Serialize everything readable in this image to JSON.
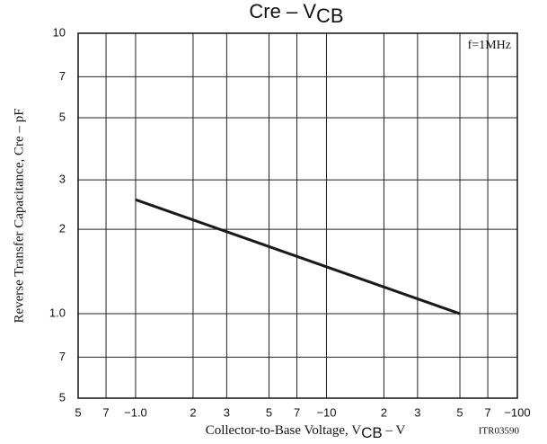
{
  "chart_data": {
    "type": "line",
    "title": [
      "Cre  –  V",
      "CB"
    ],
    "xlabel": [
      "Collector-to-Base Voltage, V",
      "CB",
      "  –  V"
    ],
    "ylabel": "Reverse Transfer Capacitance, Cre  –  pF",
    "annotations": [
      "f=1MHz",
      "ITR03590"
    ],
    "x": [
      1,
      50
    ],
    "series": [
      {
        "values": [
          2.55,
          1.0
        ],
        "color": "#1a1a1a"
      }
    ],
    "xlog": true,
    "ylog": true,
    "grid": true,
    "xlim": [
      0.5,
      100
    ],
    "ylim": [
      0.5,
      10
    ],
    "xticks": [
      {
        "value": 0.5,
        "label": "5"
      },
      {
        "value": 0.7,
        "label": "7"
      },
      {
        "value": 1,
        "label": "−1.0"
      },
      2,
      3,
      5,
      7,
      {
        "value": 10,
        "label": "−10"
      },
      {
        "value": 20,
        "label": "2"
      },
      {
        "value": 30,
        "label": "3"
      },
      {
        "value": 50,
        "label": "5"
      },
      {
        "value": 70,
        "label": "7"
      },
      {
        "value": 100,
        "label": "−100"
      }
    ],
    "yticks": [
      {
        "value": 0.5,
        "label": "5"
      },
      {
        "value": 0.7,
        "label": "7"
      },
      {
        "value": 1,
        "label": "1.0"
      },
      2,
      3,
      5,
      7,
      10
    ]
  }
}
